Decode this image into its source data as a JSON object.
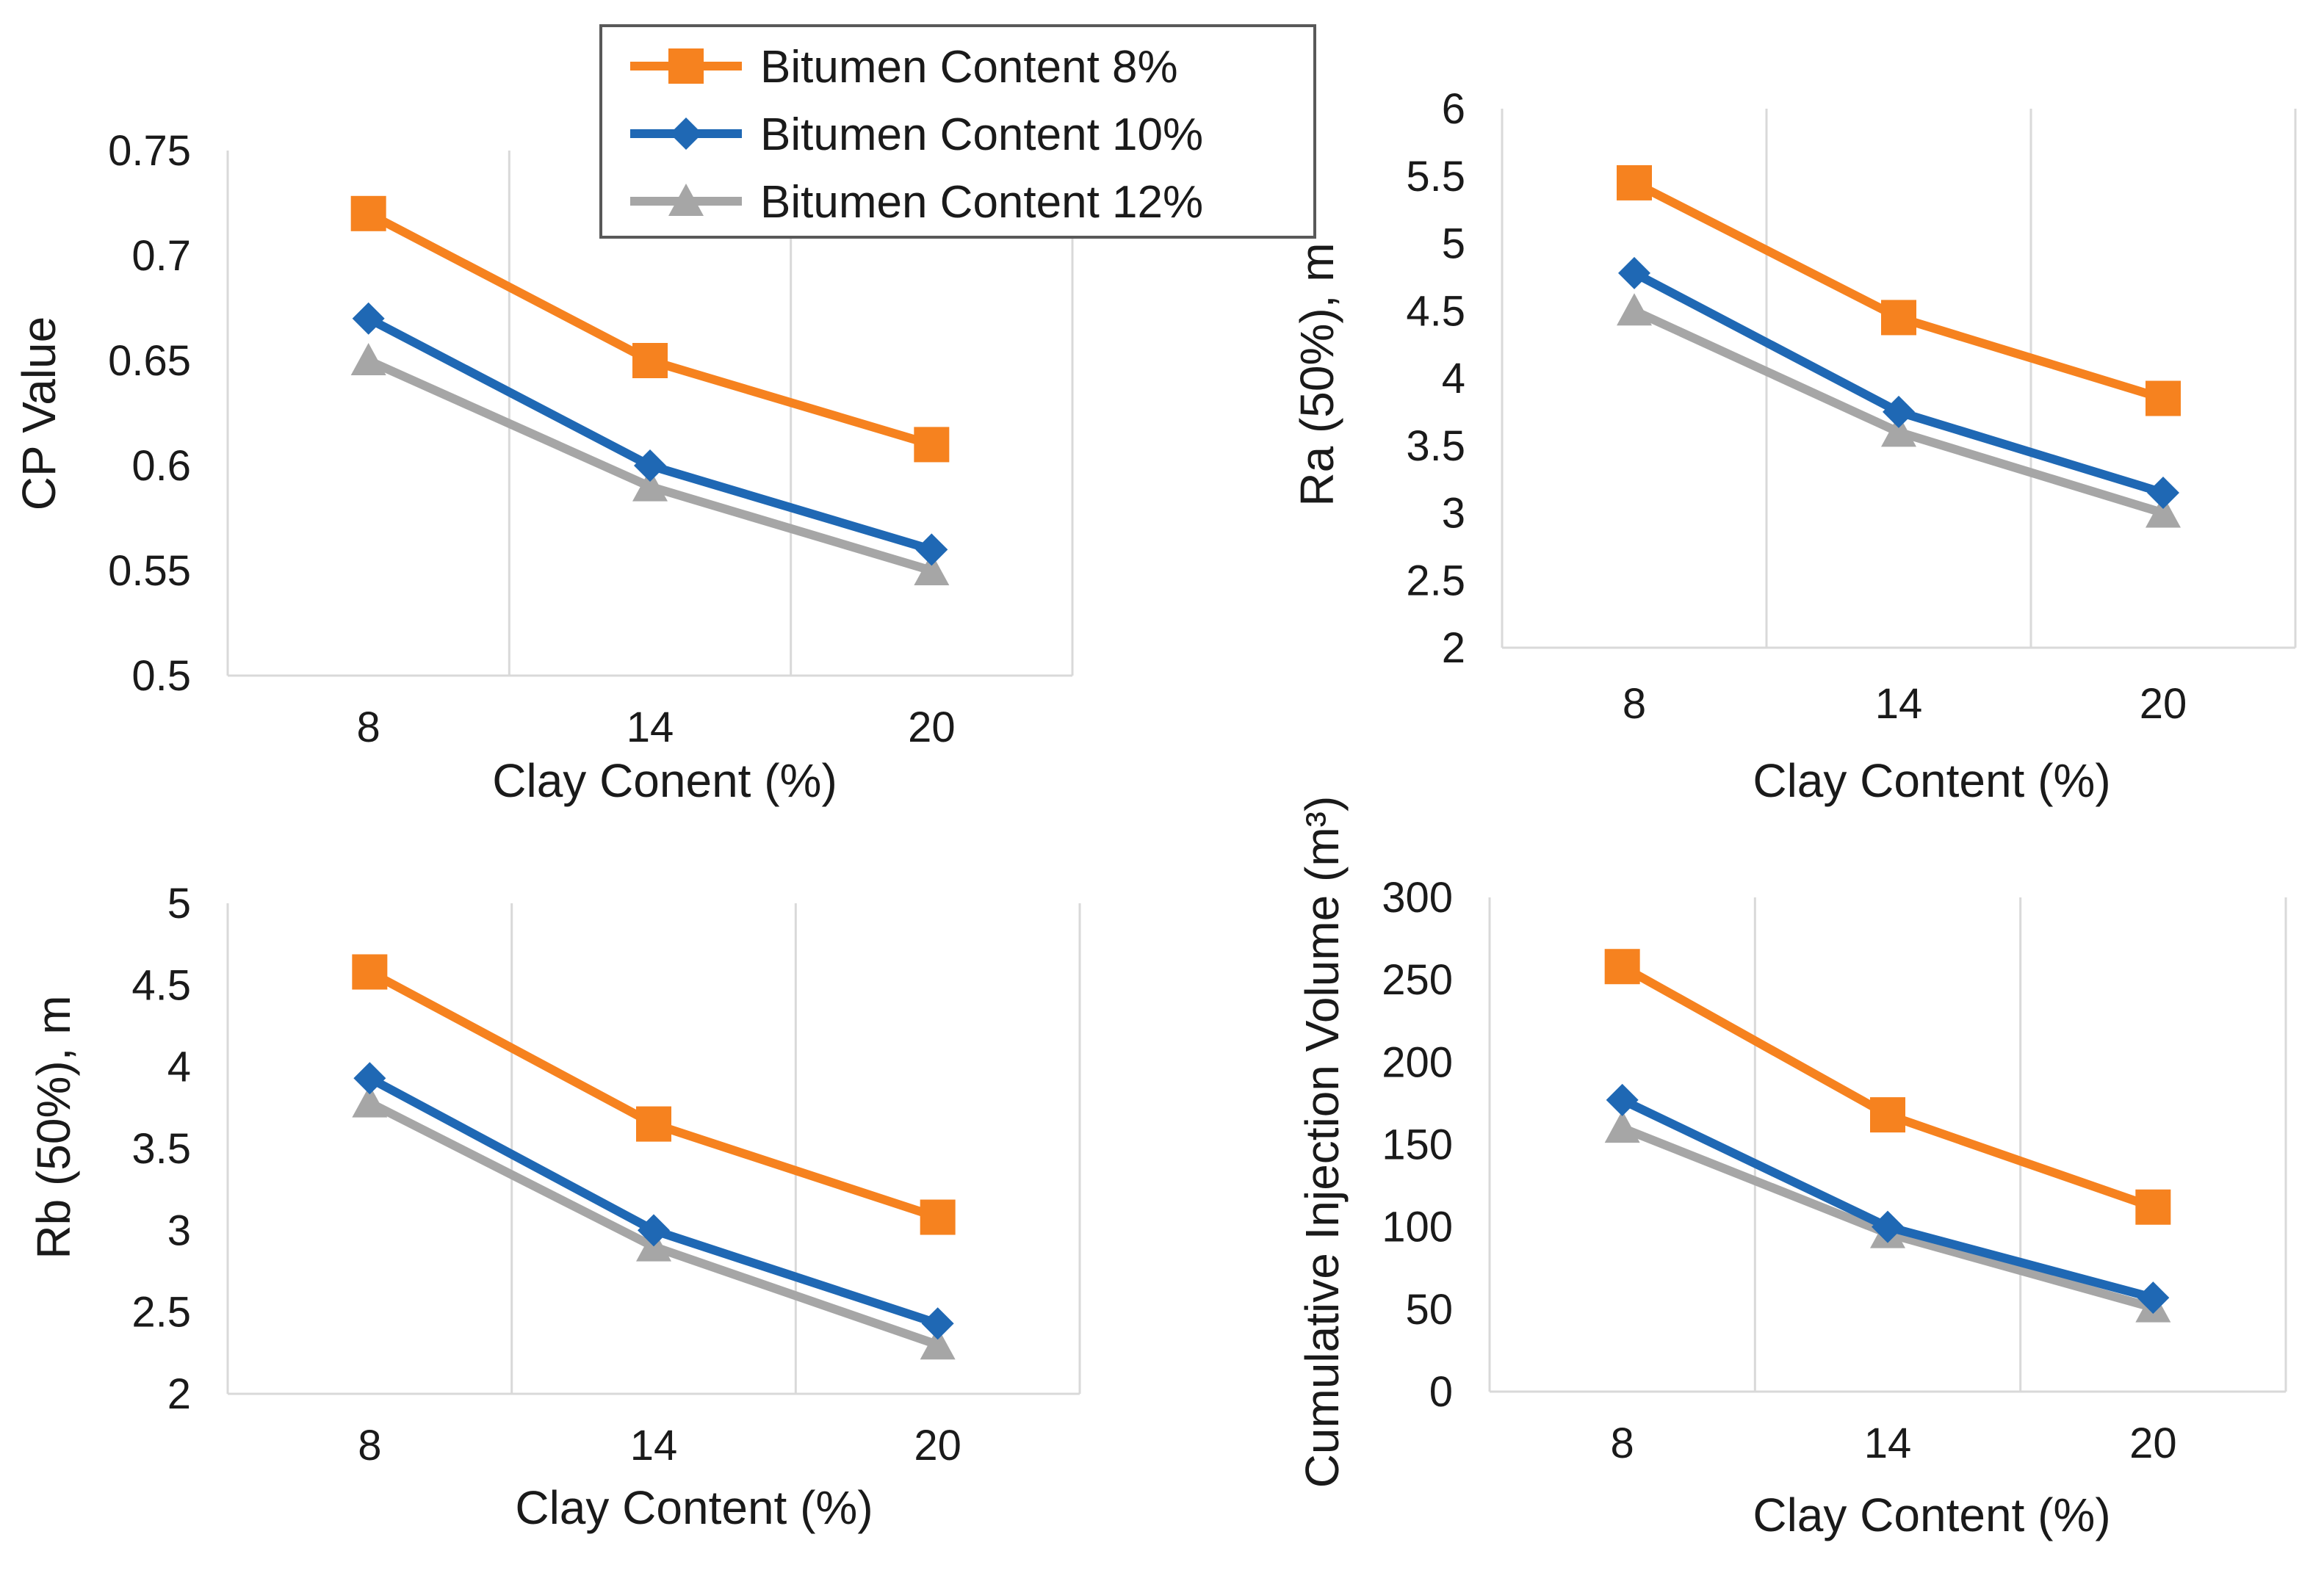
{
  "legend": {
    "entries": [
      {
        "name": "Bitumen Content 8%",
        "color": "#F6821F",
        "marker": "square"
      },
      {
        "name": "Bitumen Content 10%",
        "color": "#1F68B4",
        "marker": "diamond"
      },
      {
        "name": "Bitumen Content 12%",
        "color": "#A6A6A6",
        "marker": "triangle"
      }
    ]
  },
  "chart_data": [
    {
      "type": "line",
      "categories": [
        "8",
        "14",
        "20"
      ],
      "xlabel": "Clay Conent (%)",
      "ylabel": "CP Value",
      "ylim": [
        0.5,
        0.75
      ],
      "yticks": [
        "0.5",
        "0.55",
        "0.6",
        "0.65",
        "0.7",
        "0.75"
      ],
      "grid": "vertical",
      "series": [
        {
          "name": "Bitumen Content 8%",
          "values": [
            0.72,
            0.65,
            0.61
          ]
        },
        {
          "name": "Bitumen Content 10%",
          "values": [
            0.67,
            0.6,
            0.56
          ]
        },
        {
          "name": "Bitumen Content 12%",
          "values": [
            0.65,
            0.59,
            0.55
          ]
        }
      ]
    },
    {
      "type": "line",
      "categories": [
        "8",
        "14",
        "20"
      ],
      "xlabel": "Clay Content (%)",
      "ylabel": "Ra (50%), m",
      "ylim": [
        2,
        6
      ],
      "yticks": [
        "2",
        "2.5",
        "3",
        "3.5",
        "4",
        "4.5",
        "5",
        "5.5",
        "6"
      ],
      "grid": "vertical",
      "series": [
        {
          "name": "Bitumen Content 8%",
          "values": [
            5.45,
            4.45,
            3.85
          ]
        },
        {
          "name": "Bitumen Content 10%",
          "values": [
            4.78,
            3.75,
            3.15
          ]
        },
        {
          "name": "Bitumen Content 12%",
          "values": [
            4.5,
            3.6,
            3.0
          ]
        }
      ]
    },
    {
      "type": "line",
      "categories": [
        "8",
        "14",
        "20"
      ],
      "xlabel": "Clay Content (%)",
      "ylabel": "Rb (50%), m",
      "ylim": [
        2,
        5
      ],
      "yticks": [
        "2",
        "2.5",
        "3",
        "3.5",
        "4",
        "4.5",
        "5"
      ],
      "grid": "vertical",
      "series": [
        {
          "name": "Bitumen Content 8%",
          "values": [
            4.58,
            3.65,
            3.08
          ]
        },
        {
          "name": "Bitumen Content 10%",
          "values": [
            3.93,
            3.0,
            2.43
          ]
        },
        {
          "name": "Bitumen Content 12%",
          "values": [
            3.78,
            2.9,
            2.3
          ]
        }
      ]
    },
    {
      "type": "line",
      "categories": [
        "8",
        "14",
        "20"
      ],
      "xlabel": "Clay Content (%)",
      "ylabel": "Cumulative Injection Volume (m³)",
      "ylim": [
        0,
        300
      ],
      "yticks": [
        "0",
        "50",
        "100",
        "150",
        "200",
        "250",
        "300"
      ],
      "grid": "vertical",
      "series": [
        {
          "name": "Bitumen Content 8%",
          "values": [
            258,
            168,
            112
          ]
        },
        {
          "name": "Bitumen Content 10%",
          "values": [
            177,
            100,
            57
          ]
        },
        {
          "name": "Bitumen Content 12%",
          "values": [
            160,
            96,
            51
          ]
        }
      ]
    }
  ]
}
